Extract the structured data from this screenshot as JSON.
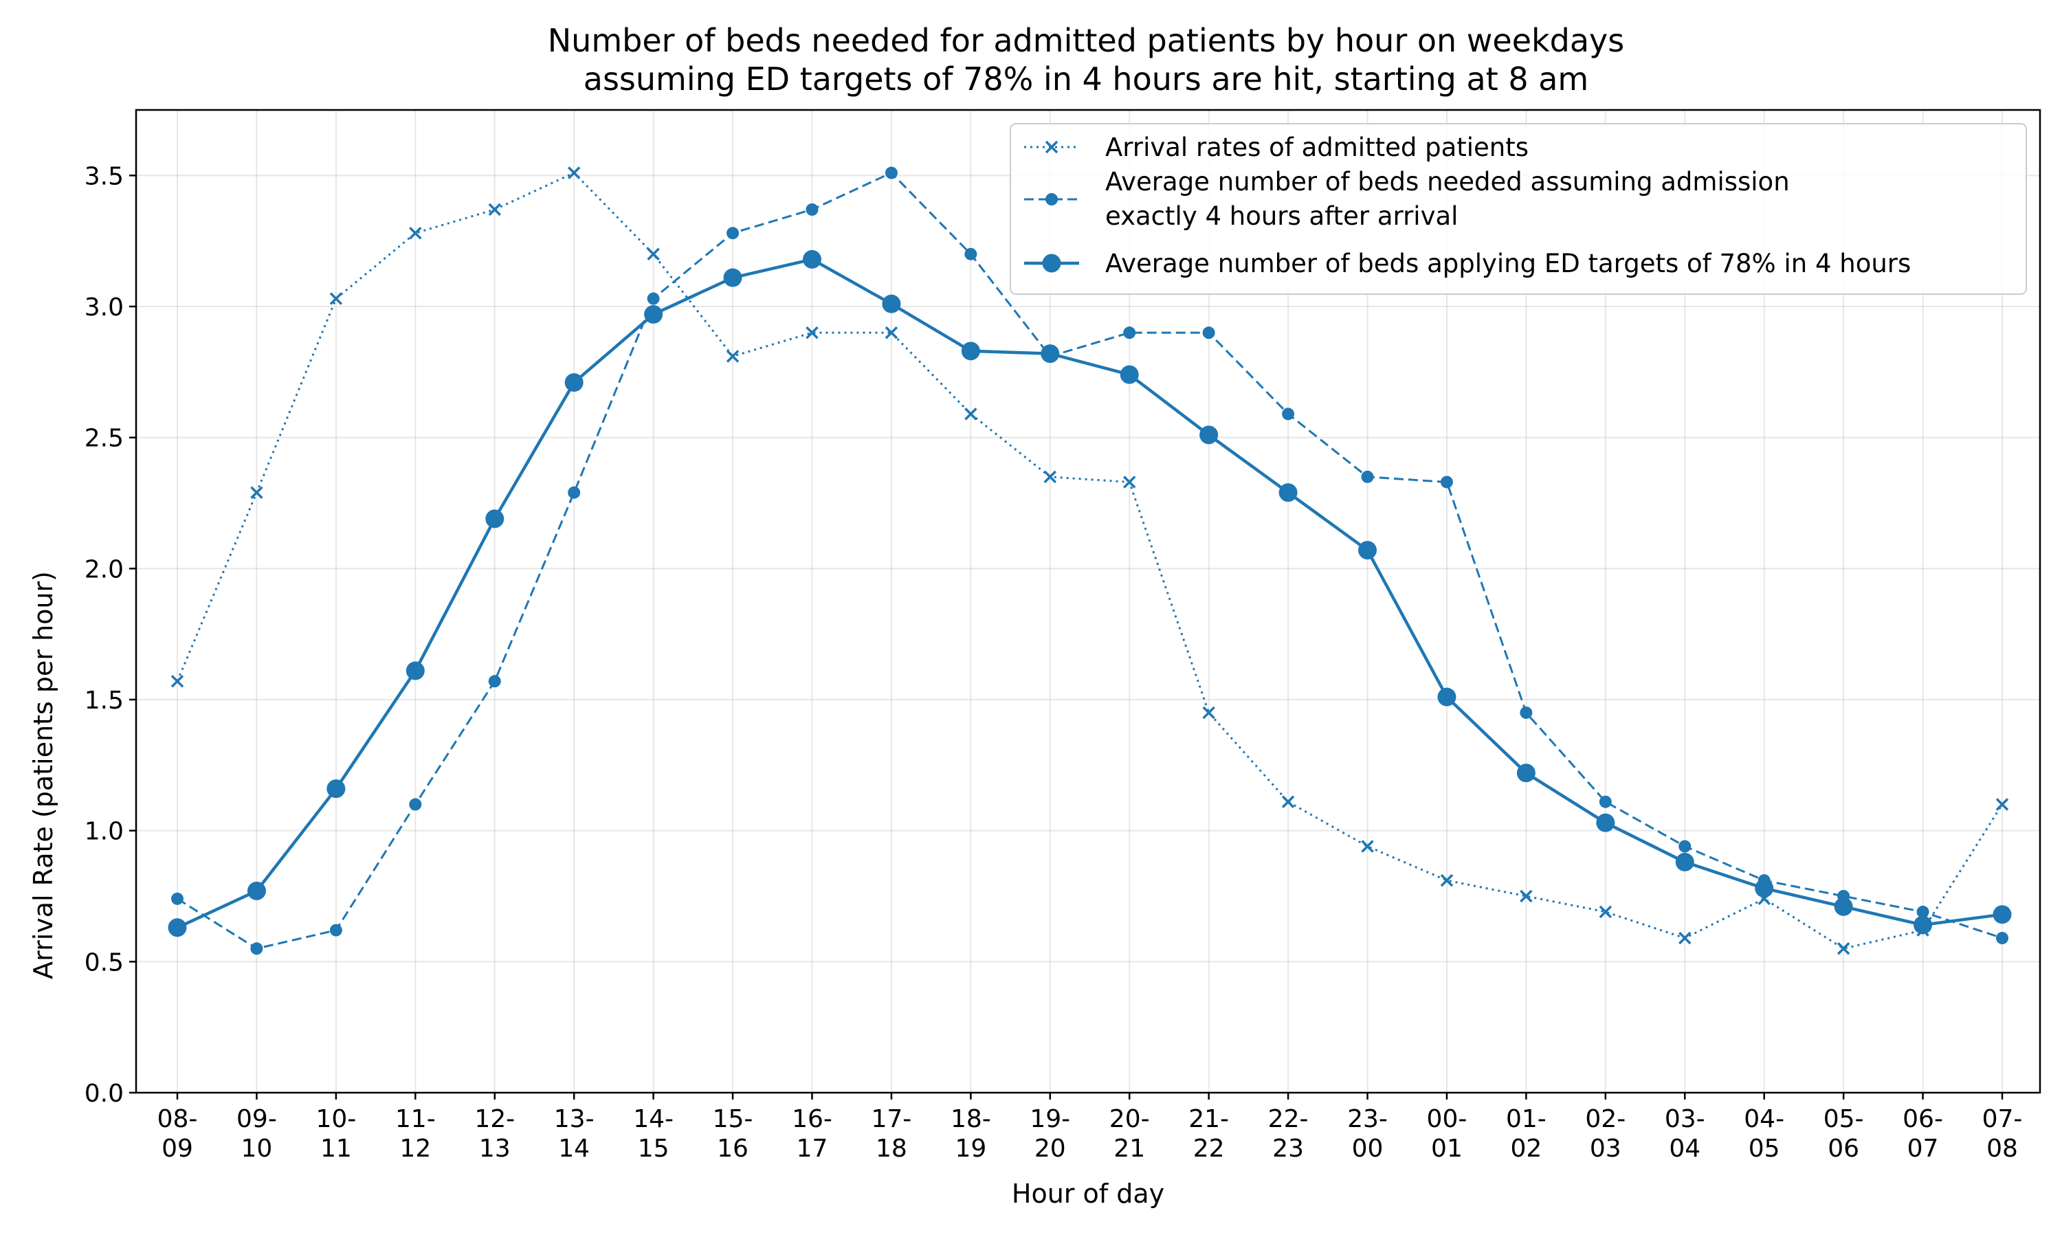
{
  "chart_data": {
    "type": "line",
    "title": "Number of beds needed for admitted patients by hour on weekdays",
    "subtitle": "assuming ED targets of 78% in 4 hours are hit, starting at 8 am",
    "xlabel": "Hour of day",
    "ylabel": "Arrival Rate (patients per hour)",
    "ylim": [
      0,
      3.75
    ],
    "yticks": [
      0.0,
      0.5,
      1.0,
      1.5,
      2.0,
      2.5,
      3.0,
      3.5
    ],
    "ytick_labels": [
      "0.0",
      "0.5",
      "1.0",
      "1.5",
      "2.0",
      "2.5",
      "3.0",
      "3.5"
    ],
    "grid": true,
    "legend_position": "top-right",
    "color": "#1f77b4",
    "categories": [
      {
        "top": "08-",
        "bottom": "09"
      },
      {
        "top": "09-",
        "bottom": "10"
      },
      {
        "top": "10-",
        "bottom": "11"
      },
      {
        "top": "11-",
        "bottom": "12"
      },
      {
        "top": "12-",
        "bottom": "13"
      },
      {
        "top": "13-",
        "bottom": "14"
      },
      {
        "top": "14-",
        "bottom": "15"
      },
      {
        "top": "15-",
        "bottom": "16"
      },
      {
        "top": "16-",
        "bottom": "17"
      },
      {
        "top": "17-",
        "bottom": "18"
      },
      {
        "top": "18-",
        "bottom": "19"
      },
      {
        "top": "19-",
        "bottom": "20"
      },
      {
        "top": "20-",
        "bottom": "21"
      },
      {
        "top": "21-",
        "bottom": "22"
      },
      {
        "top": "22-",
        "bottom": "23"
      },
      {
        "top": "23-",
        "bottom": "00"
      },
      {
        "top": "00-",
        "bottom": "01"
      },
      {
        "top": "01-",
        "bottom": "02"
      },
      {
        "top": "02-",
        "bottom": "03"
      },
      {
        "top": "03-",
        "bottom": "04"
      },
      {
        "top": "04-",
        "bottom": "05"
      },
      {
        "top": "05-",
        "bottom": "06"
      },
      {
        "top": "06-",
        "bottom": "07"
      },
      {
        "top": "07-",
        "bottom": "08"
      }
    ],
    "series": [
      {
        "name": "Arrival rates of admitted patients",
        "style": "dotted",
        "marker": "x",
        "values": [
          1.57,
          2.29,
          3.03,
          3.28,
          3.37,
          3.51,
          3.2,
          2.81,
          2.9,
          2.9,
          2.59,
          2.35,
          2.33,
          1.45,
          1.11,
          0.94,
          0.81,
          0.75,
          0.69,
          0.59,
          0.74,
          0.55,
          0.62,
          1.1
        ]
      },
      {
        "name": "Average number of beds needed assuming admission\nexactly 4 hours after arrival",
        "name_lines": [
          "Average number of beds needed assuming admission",
          "exactly 4 hours after arrival"
        ],
        "style": "dashed",
        "marker": "small-dot",
        "values": [
          0.74,
          0.55,
          0.62,
          1.1,
          1.57,
          2.29,
          3.03,
          3.28,
          3.37,
          3.51,
          3.2,
          2.81,
          2.9,
          2.9,
          2.59,
          2.35,
          2.33,
          1.45,
          1.11,
          0.94,
          0.81,
          0.75,
          0.69,
          0.59
        ]
      },
      {
        "name": "Average number of beds applying ED targets of 78% in 4 hours",
        "style": "solid",
        "marker": "large-dot",
        "values": [
          0.63,
          0.77,
          1.16,
          1.61,
          2.19,
          2.71,
          2.97,
          3.11,
          3.18,
          3.01,
          2.83,
          2.82,
          2.74,
          2.51,
          2.29,
          2.07,
          1.51,
          1.22,
          1.03,
          0.88,
          0.78,
          0.71,
          0.64,
          0.68
        ]
      }
    ]
  }
}
